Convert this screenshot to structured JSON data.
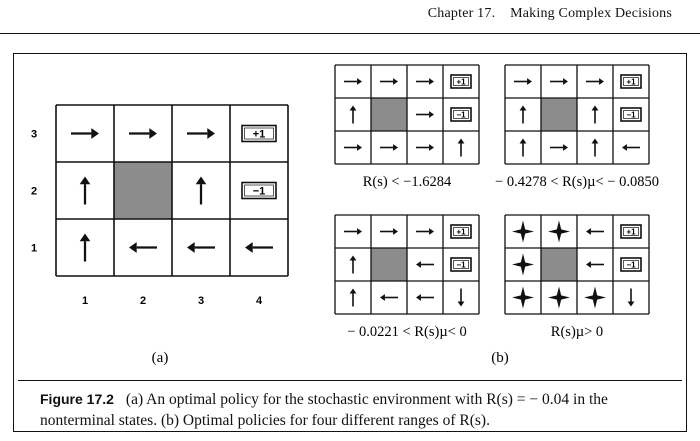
{
  "header": {
    "chapter_text": "Chapter   17.",
    "chapter_title": "Making Complex Decisions"
  },
  "figure": {
    "panel_a": {
      "label": "(a)",
      "row_labels": [
        "3",
        "2",
        "1"
      ],
      "col_labels": [
        "1",
        "2",
        "3",
        "4"
      ],
      "grid": [
        [
          "right",
          "right",
          "right",
          "+1"
        ],
        [
          "up",
          "wall",
          "up",
          "-1"
        ],
        [
          "up",
          "left",
          "left",
          "left"
        ]
      ],
      "terminal_plus": "+1",
      "terminal_minus": "−1"
    },
    "panel_b": {
      "label": "(b)",
      "subfigures": [
        {
          "grid": [
            [
              "right",
              "right",
              "right",
              "+1"
            ],
            [
              "up",
              "wall",
              "right",
              "-1"
            ],
            [
              "right",
              "right",
              "right",
              "up"
            ]
          ],
          "caption": "R(s) < −1.6284"
        },
        {
          "grid": [
            [
              "right",
              "right",
              "right",
              "+1"
            ],
            [
              "up",
              "wall",
              "up",
              "-1"
            ],
            [
              "up",
              "right",
              "up",
              "left"
            ]
          ],
          "caption": "− 0.4278 < R(s)µ< − 0.0850"
        },
        {
          "grid": [
            [
              "right",
              "right",
              "right",
              "+1"
            ],
            [
              "up",
              "wall",
              "left",
              "-1"
            ],
            [
              "up",
              "left",
              "left",
              "down"
            ]
          ],
          "caption": "− 0.0221 < R(s)µ< 0"
        },
        {
          "grid": [
            [
              "star",
              "star",
              "left",
              "+1"
            ],
            [
              "star",
              "wall",
              "left",
              "-1"
            ],
            [
              "star",
              "star",
              "star",
              "down"
            ]
          ],
          "caption": "R(s)µ> 0"
        }
      ]
    }
  },
  "caption": {
    "label": "Figure 17.2",
    "text": "(a) An optimal policy for the stochastic environment with R(s) = − 0.04 in the nonterminal states. (b) Optimal policies for four different ranges of R(s)."
  }
}
